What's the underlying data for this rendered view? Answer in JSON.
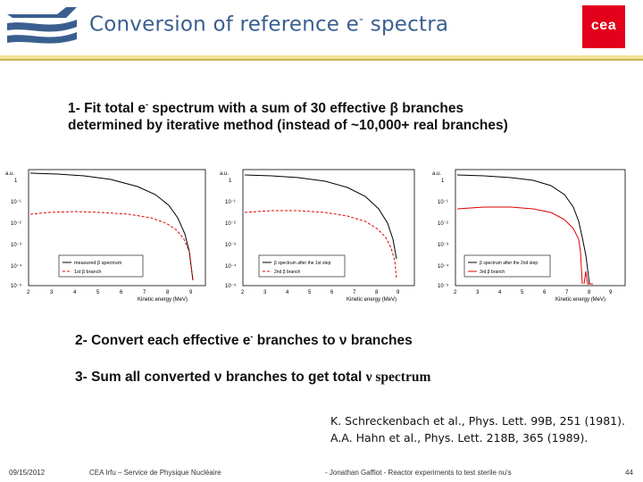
{
  "header": {
    "title": "Conversion of reference e",
    "title_sup": "-",
    "title_tail": " spectra",
    "logo_text": "cea"
  },
  "steps": {
    "step1_a": "1- Fit total e",
    "step1_sup": "-",
    "step1_b": " spectrum with a sum of 30 effective β branches",
    "step1_line2": "determined by iterative method (instead of ~10,000+ real branches)",
    "step2_a": "2- Convert each effective e",
    "step2_sup": "-",
    "step2_b": "  branches to ν branches",
    "step3_a": "3- Sum all converted ν branches to get total ",
    "step3_b": "ν spectrum"
  },
  "plots": {
    "ylabel": "a.u.",
    "xlabel": "Kinetic energy (MeV)",
    "y_ticks": [
      "1",
      "10⁻¹",
      "10⁻²",
      "10⁻³",
      "10⁻⁴",
      "10⁻⁵"
    ],
    "panel1": {
      "x_ticks": [
        "2",
        "3",
        "4",
        "5",
        "6",
        "7",
        "8",
        "9"
      ],
      "legend": [
        "measured β spectrum",
        "1st β branch"
      ]
    },
    "panel2": {
      "x_ticks": [
        "2",
        "3",
        "4",
        "5",
        "6",
        "7",
        "8",
        "9"
      ],
      "legend": [
        "β spectrum after the 1st step",
        "2nd β branch"
      ]
    },
    "panel3": {
      "x_ticks": [
        "2",
        "3",
        "4",
        "5",
        "6",
        "7",
        "8",
        "9"
      ],
      "legend": [
        "β spectrum after the 2nd step",
        "3rd β branch"
      ]
    }
  },
  "references": {
    "line1": "K. Schreckenbach et al., Phys. Lett. 99B, 251 (1981).",
    "line2": "A.A. Hahn et al., Phys. Lett. 218B, 365 (1989)."
  },
  "footer": {
    "date": "09/15/2012",
    "institute": "CEA Irfu – Service de Physique Nucléaire",
    "talk": "- Jonathan Gaffiot - Reactor experiments to test sterile nu's",
    "page": "44"
  },
  "colors": {
    "title": "#3a5f8f",
    "accent_bar": "#f3e39a",
    "cea_red": "#e2001a",
    "curve_black": "#000000",
    "curve_red": "#e00000"
  }
}
